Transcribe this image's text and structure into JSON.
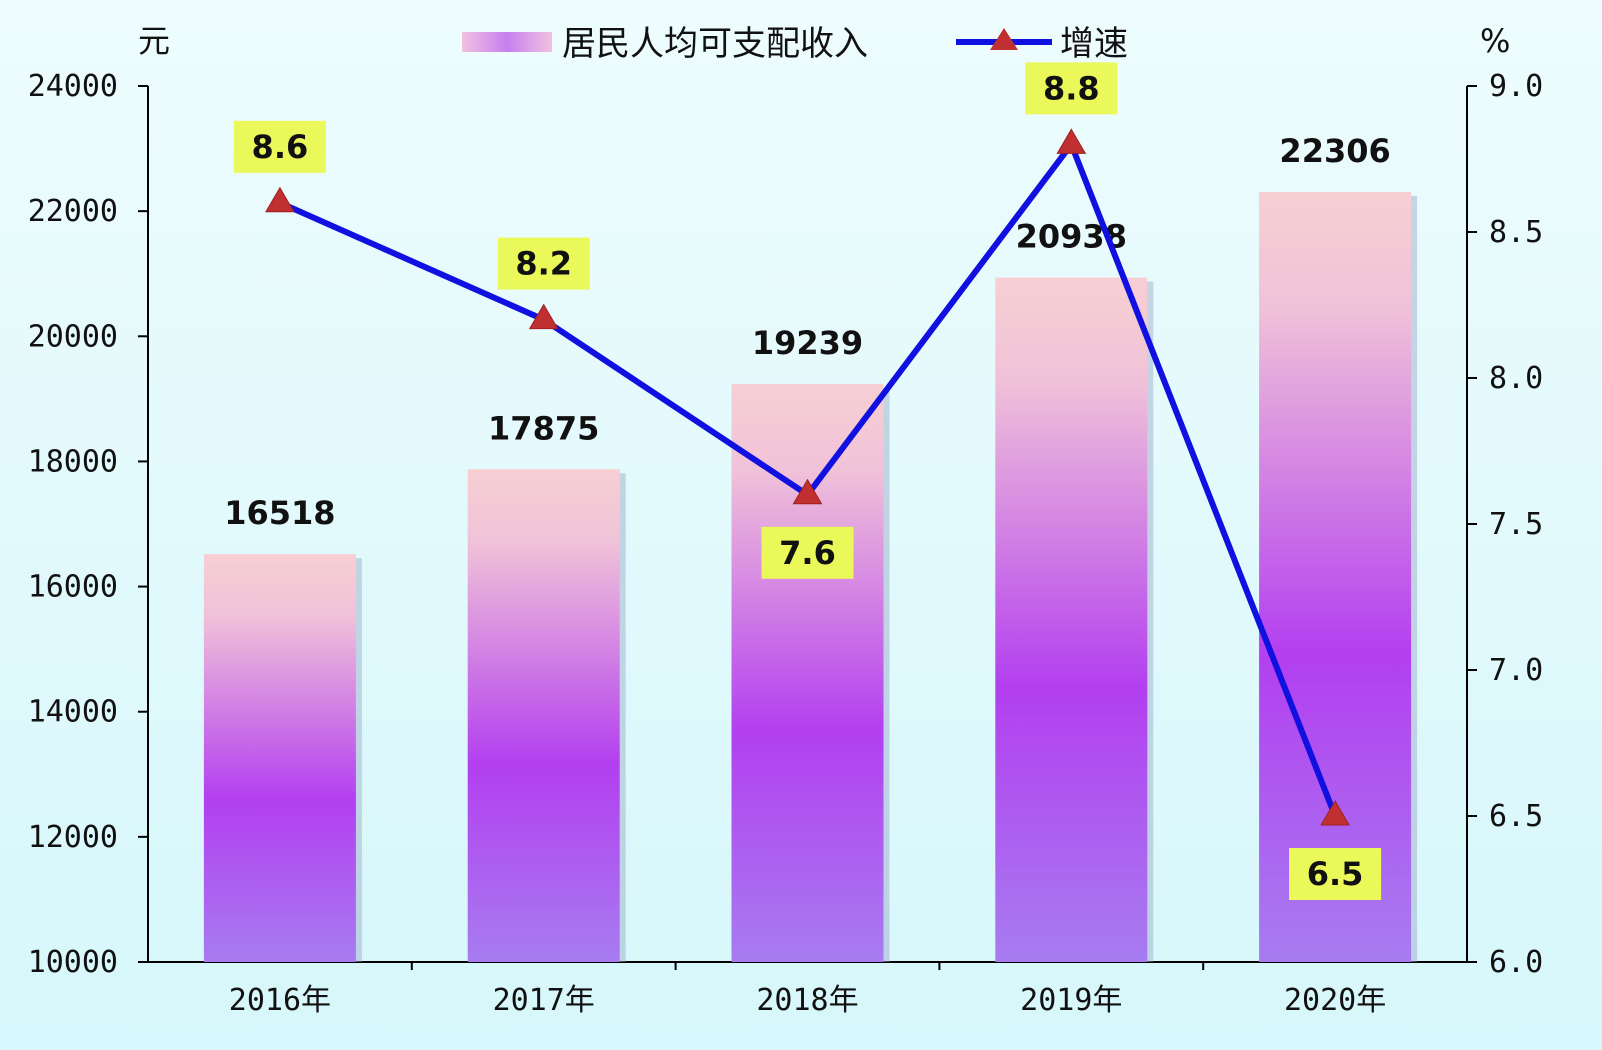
{
  "chart_data": {
    "type": "bar",
    "categories": [
      "2016年",
      "2017年",
      "2018年",
      "2019年",
      "2020年"
    ],
    "series": [
      {
        "name": "居民人均可支配收入",
        "type": "bar",
        "axis": "left",
        "values": [
          16518,
          17875,
          19239,
          20938,
          22306
        ]
      },
      {
        "name": "增速",
        "type": "line",
        "axis": "right",
        "values": [
          8.6,
          8.2,
          7.6,
          8.8,
          6.5
        ]
      }
    ],
    "bar_labels": [
      "16518",
      "17875",
      "19239",
      "20938",
      "22306"
    ],
    "rate_labels": [
      "8.6",
      "8.2",
      "7.6",
      "8.8",
      "6.5"
    ],
    "y_left": {
      "unit": "元",
      "ylim": [
        10000,
        24000
      ],
      "ticks": [
        10000,
        12000,
        14000,
        16000,
        18000,
        20000,
        22000,
        24000
      ],
      "tick_labels": [
        "10000",
        "12000",
        "14000",
        "16000",
        "18000",
        "20000",
        "22000",
        "24000"
      ]
    },
    "y_right": {
      "unit": "%",
      "ylim": [
        6.0,
        9.0
      ],
      "ticks": [
        6.0,
        6.5,
        7.0,
        7.5,
        8.0,
        8.5,
        9.0
      ],
      "tick_labels": [
        "6.0",
        "6.5",
        "7.0",
        "7.5",
        "8.0",
        "8.5",
        "9.0"
      ]
    },
    "legend": {
      "position": "top-center",
      "items": [
        "居民人均可支配收入",
        "增速"
      ]
    },
    "grid": false,
    "colors": {
      "bar_top": "#f7cfd3",
      "bar_mid": "#b33ff0",
      "bar_bottom": "#a77cf0",
      "line": "#1010e0",
      "marker": "#c03030",
      "label_box": "#eaf85a"
    }
  }
}
